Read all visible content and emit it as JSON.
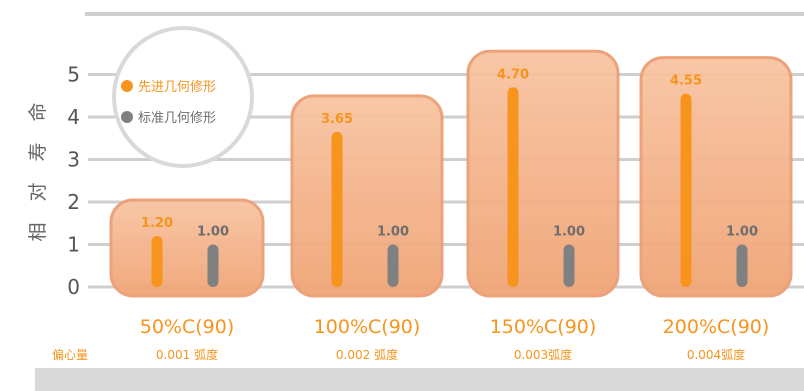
{
  "chart_data": {
    "type": "bar",
    "ylabel": "相对寿命",
    "ylim": [
      0,
      5
    ],
    "yticks": [
      "0",
      "1",
      "2",
      "3",
      "4",
      "5"
    ],
    "categories": [
      "50%C(90)",
      "100%C(90)",
      "150%C(90)",
      "200%C(90)"
    ],
    "sublabel_title": "偏心量",
    "sublabels": [
      "0.001 弧度",
      "0.002 弧度",
      "0.003弧度",
      "0.004弧度"
    ],
    "series": [
      {
        "name": "先进几何修形",
        "values": [
          1.2,
          3.65,
          4.7,
          4.55
        ],
        "labels": [
          "1.20",
          "3.65",
          "4.70",
          "4.55"
        ],
        "color": "#f7941d"
      },
      {
        "name": "标准几何修形",
        "values": [
          1.0,
          1.0,
          1.0,
          1.0
        ],
        "labels": [
          "1.00",
          "1.00",
          "1.00",
          "1.00"
        ],
        "color": "#808080"
      }
    ],
    "grid": true,
    "legend": "top-left, circle"
  },
  "colors": {
    "accent": "#f7941d",
    "gray": "#808080",
    "box_fill": "#f3b48a",
    "box_stroke": "#ec9f75",
    "grid": "#cfcfcf"
  }
}
